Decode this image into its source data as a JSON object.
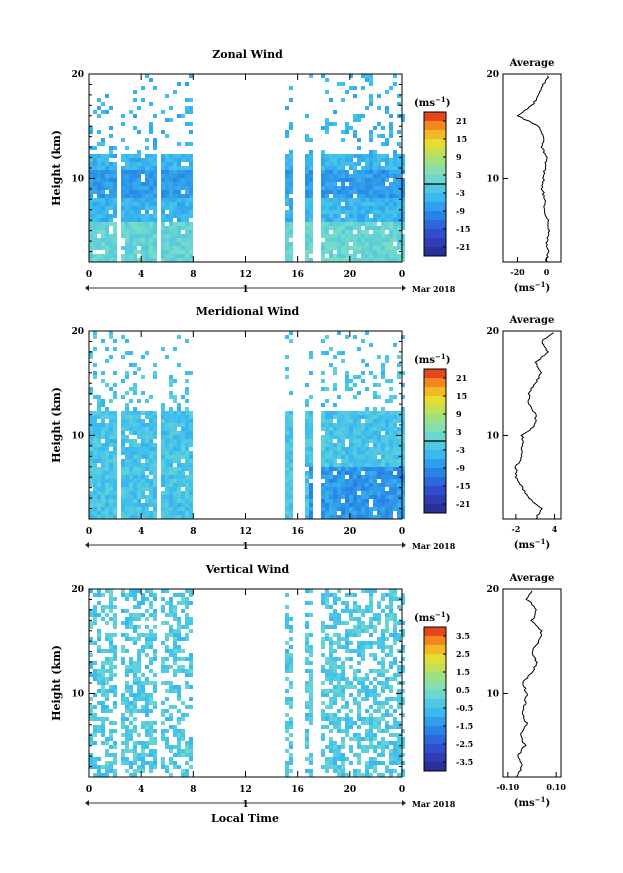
{
  "chart_data": [
    {
      "type": "heatmap",
      "title": "Zonal Wind",
      "ylabel": "Height (km)",
      "ylim": [
        2,
        20
      ],
      "xlim": [
        0,
        24
      ],
      "x_ticks": [
        "0",
        "4",
        "8",
        "12",
        "16",
        "20",
        "0"
      ],
      "y_ticks": [
        "20",
        "10"
      ],
      "date_label": "Mar 2018",
      "day_label": "1",
      "colorbar": {
        "unit_label": "(ms",
        "unit_exp": "−1",
        "unit_close": ")",
        "ticks": [
          "21",
          "15",
          "9",
          "3",
          "-3",
          "-9",
          "-15",
          "-21"
        ],
        "range": [
          -24,
          24
        ],
        "zero_line": true
      },
      "data_gaps": [
        [
          2.2,
          2.6
        ],
        [
          5.2,
          5.6
        ],
        [
          8,
          15
        ],
        [
          15.5,
          16.5
        ],
        [
          17.3,
          17.7
        ]
      ],
      "average": {
        "title": "Average",
        "xlabel": "(ms",
        "xlabel_exp": "−1",
        "xlabel_close": ")",
        "x_ticks": [
          "-20",
          "0"
        ],
        "y_ticks": [
          "20",
          "10"
        ],
        "xlim": [
          -30,
          10
        ],
        "height": [
          2,
          3,
          4,
          5,
          6,
          7,
          8,
          9,
          10,
          11,
          12,
          13,
          14,
          15,
          16,
          17,
          18,
          19,
          20
        ],
        "value": [
          0,
          1,
          0,
          2,
          1,
          -2,
          -1,
          -3,
          -2,
          -1,
          0,
          -3,
          -2,
          -5,
          -20,
          -10,
          -5,
          -2,
          2
        ]
      }
    },
    {
      "type": "heatmap",
      "title": "Meridional Wind",
      "ylabel": "Height (km)",
      "ylim": [
        2,
        20
      ],
      "xlim": [
        0,
        24
      ],
      "x_ticks": [
        "0",
        "4",
        "8",
        "12",
        "16",
        "20",
        "0"
      ],
      "y_ticks": [
        "20",
        "10"
      ],
      "date_label": "Mar 2018",
      "day_label": "1",
      "colorbar": {
        "unit_label": "(ms",
        "unit_exp": "−1",
        "unit_close": ")",
        "ticks": [
          "21",
          "15",
          "9",
          "3",
          "-3",
          "-9",
          "-15",
          "-21"
        ],
        "range": [
          -24,
          24
        ],
        "zero_line": true
      },
      "data_gaps": [
        [
          2.2,
          2.6
        ],
        [
          5.2,
          5.6
        ],
        [
          8,
          15
        ],
        [
          15.5,
          16.5
        ],
        [
          17.3,
          17.7
        ]
      ],
      "average": {
        "title": "Average",
        "xlabel": "(ms",
        "xlabel_exp": "−1",
        "xlabel_close": ")",
        "x_ticks": [
          "-2",
          "4"
        ],
        "y_ticks": [
          "20",
          "10"
        ],
        "xlim": [
          -4,
          5
        ],
        "height": [
          2,
          3,
          4,
          5,
          6,
          7,
          8,
          9,
          10,
          11,
          12,
          13,
          14,
          15,
          16,
          17,
          18,
          19,
          20
        ],
        "value": [
          1,
          2,
          0,
          -1,
          -2,
          -2,
          -1,
          -1,
          -1,
          1,
          1,
          0,
          0,
          1,
          2,
          1,
          3,
          2,
          4
        ]
      }
    },
    {
      "type": "heatmap",
      "title": "Vertical Wind",
      "xlabel": "Local Time",
      "ylabel": "Height (km)",
      "ylim": [
        2,
        20
      ],
      "xlim": [
        0,
        24
      ],
      "x_ticks": [
        "0",
        "4",
        "8",
        "12",
        "16",
        "20",
        "0"
      ],
      "y_ticks": [
        "20",
        "10"
      ],
      "date_label": "Mar 2018",
      "day_label": "1",
      "colorbar": {
        "unit_label": "(ms",
        "unit_exp": "−1",
        "unit_close": ")",
        "ticks": [
          "3.5",
          "2.5",
          "1.5",
          "0.5",
          "-0.5",
          "-1.5",
          "-2.5",
          "-3.5"
        ],
        "range": [
          -4,
          4
        ],
        "zero_line": false
      },
      "data_gaps": [
        [
          2.2,
          2.6
        ],
        [
          5.2,
          5.6
        ],
        [
          8,
          15
        ],
        [
          15.5,
          16.5
        ],
        [
          17.3,
          17.7
        ]
      ],
      "average": {
        "title": "Average",
        "xlabel": "(ms",
        "xlabel_exp": "−1",
        "xlabel_close": ")",
        "x_ticks": [
          "-0.10",
          "0.10"
        ],
        "y_ticks": [
          "20",
          "10"
        ],
        "xlim": [
          -0.12,
          0.12
        ],
        "height": [
          2,
          3,
          4,
          5,
          6,
          7,
          8,
          9,
          10,
          11,
          12,
          13,
          14,
          15,
          16,
          17,
          18,
          19,
          20
        ],
        "value": [
          -0.06,
          -0.04,
          -0.06,
          -0.03,
          -0.05,
          -0.02,
          -0.04,
          -0.03,
          -0.02,
          -0.04,
          0.0,
          0.02,
          0.0,
          0.03,
          0.04,
          0.0,
          0.02,
          -0.02,
          0.0
        ]
      }
    }
  ]
}
